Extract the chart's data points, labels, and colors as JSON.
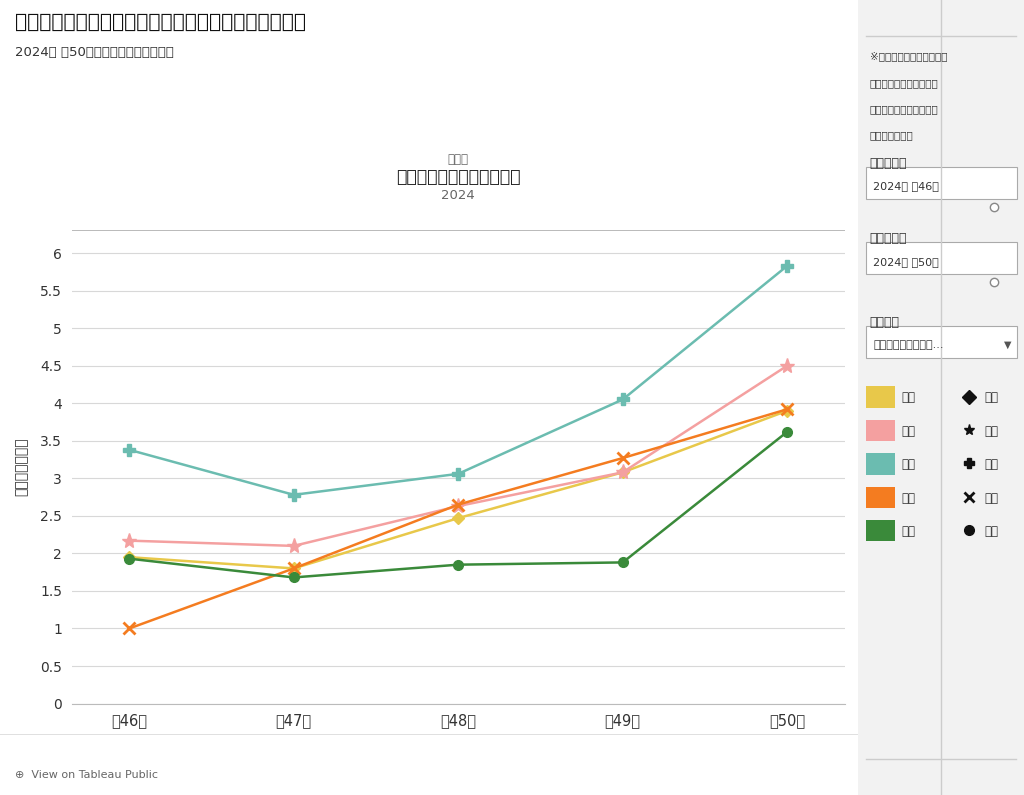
{
  "title_main": "定点把握の対象となる５類感染症（週報対象のもの）",
  "title_sub": "2024年 第50週までのデータに基づく",
  "chart_subtitle1": "小・内",
  "chart_subtitle2": "新型コロナウイルス感染症",
  "chart_subtitle3": "2024",
  "ylabel": "定点当り患者数",
  "x_labels": [
    "第46週",
    "第47週",
    "第48週",
    "第49週",
    "第50週"
  ],
  "series": [
    {
      "key": "全国",
      "values": [
        1.95,
        1.8,
        2.47,
        3.08,
        3.9
      ],
      "color": "#E8C84A",
      "marker": "D",
      "markersize": 6,
      "linewidth": 1.8,
      "markeredgewidth": 1.0
    },
    {
      "key": "全県",
      "values": [
        2.17,
        2.1,
        2.63,
        3.08,
        4.5
      ],
      "color": "#F4A0A0",
      "marker": "*",
      "markersize": 11,
      "linewidth": 1.8,
      "markeredgewidth": 1.0
    },
    {
      "key": "東部",
      "values": [
        3.38,
        2.78,
        3.06,
        4.05,
        5.83
      ],
      "color": "#6BBCB0",
      "marker": "P",
      "markersize": 8,
      "linewidth": 1.8,
      "markeredgewidth": 1.0
    },
    {
      "key": "中部",
      "values": [
        1.0,
        1.8,
        2.65,
        3.27,
        3.92
      ],
      "color": "#F47C20",
      "marker": "x",
      "markersize": 9,
      "linewidth": 1.8,
      "markeredgewidth": 2.0
    },
    {
      "key": "西部",
      "values": [
        1.93,
        1.68,
        1.85,
        1.88,
        3.62
      ],
      "color": "#3A8A3A",
      "marker": "o",
      "markersize": 7,
      "linewidth": 1.8,
      "markeredgewidth": 1.0
    }
  ],
  "ylim": [
    0,
    6.3
  ],
  "yticks": [
    0,
    0.5,
    1.0,
    1.5,
    2.0,
    2.5,
    3.0,
    3.5,
    4.0,
    4.5,
    5.0,
    5.5,
    6.0
  ],
  "background_color": "#ffffff",
  "plot_bg_color": "#ffffff",
  "grid_color": "#d8d8d8",
  "right_panel_bg": "#f2f2f2",
  "legend_colors": [
    "#E8C84A",
    "#F4A0A0",
    "#6BBCB0",
    "#F47C20",
    "#3A8A3A"
  ],
  "legend_labels": [
    "全国",
    "全県",
    "東部",
    "中部",
    "西部"
  ],
  "legend_markers_right": [
    "D",
    "*",
    "P",
    "x",
    "o"
  ],
  "right_text1": "※表示したい年週の期間を",
  "right_text2": "以下のスライダーで選択",
  "right_text3": "できます（初期表示は直",
  "right_text4": "近５週間です）",
  "right_label1": "開始週選択",
  "right_box1": "2024年 第46週",
  "right_label2": "終了週選択",
  "right_box2": "2024年 第50週",
  "right_label3": "感染症名",
  "right_box3": "新型コロナウイルス...",
  "bottom_text": "⊕  View on Tableau Public"
}
